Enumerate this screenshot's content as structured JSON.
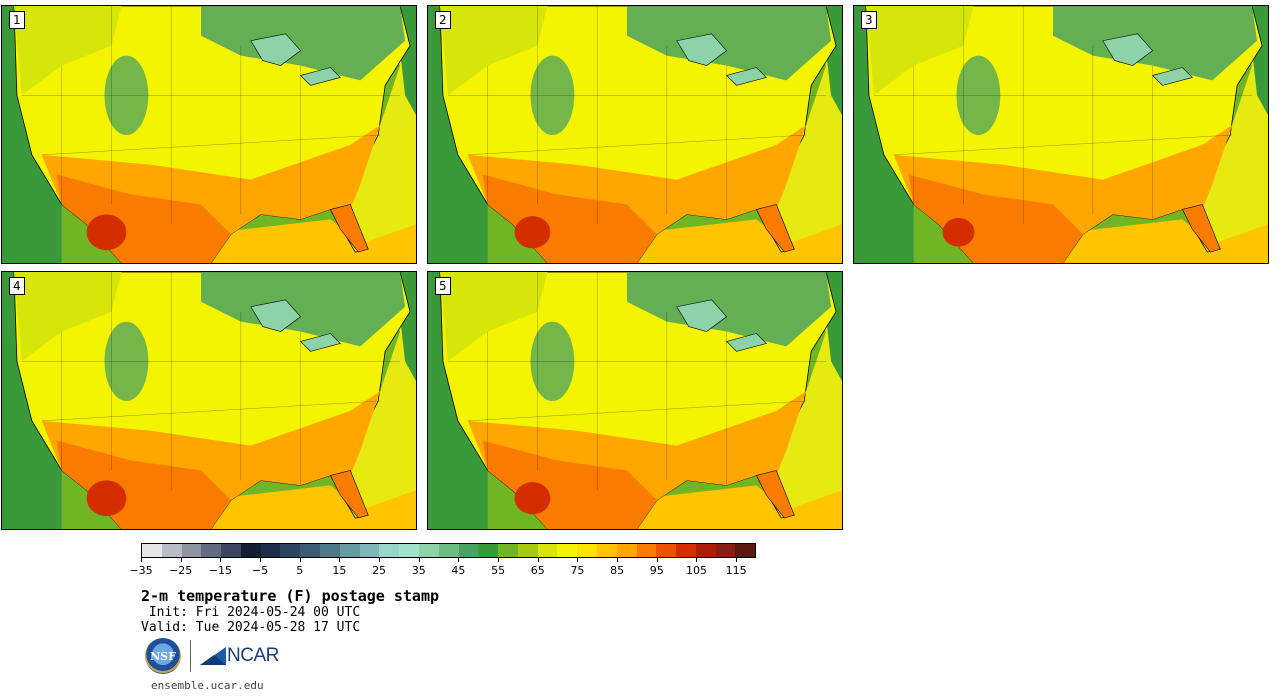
{
  "stamps": [
    {
      "label": "1"
    },
    {
      "label": "2"
    },
    {
      "label": "3"
    },
    {
      "label": "4"
    },
    {
      "label": "5"
    }
  ],
  "colorbar": {
    "colors": [
      "#e6e6e6",
      "#b8bcc4",
      "#8c93a1",
      "#626c80",
      "#3c4660",
      "#141e32",
      "#1e2d4a",
      "#2c4562",
      "#3c5c74",
      "#4f7889",
      "#6799a3",
      "#7fb7b9",
      "#9ad5cc",
      "#a5e2cd",
      "#8dd2a8",
      "#6cbc83",
      "#4aa161",
      "#3a9a3a",
      "#6fb524",
      "#a6cc12",
      "#d7e60a",
      "#f4f400",
      "#ffe400",
      "#ffc600",
      "#ffa600",
      "#f97b00",
      "#ec5200",
      "#d42e00",
      "#ac1e06",
      "#842010",
      "#5c1a0f"
    ],
    "tick_labels": [
      "−35",
      "−25",
      "−15",
      "−5",
      "5",
      "15",
      "25",
      "35",
      "45",
      "55",
      "65",
      "75",
      "85",
      "95",
      "105",
      "115"
    ]
  },
  "title": "2-m temperature (F) postage stamp",
  "init": " Init: Fri 2024-05-24 00 UTC",
  "valid": "Valid: Tue 2024-05-28 17 UTC",
  "logos": {
    "nsf": "NSF",
    "ncar": "NCAR"
  },
  "url": "ensemble.ucar.edu",
  "palette": {
    "ocean_cool": "#3a9a3a",
    "ocean_mid": "#6fb524",
    "gulf": "#ffc600",
    "land_cool": "#4aa161",
    "land_mild": "#d7e60a",
    "land_warm": "#f4f400",
    "land_hot": "#ffa600",
    "land_hotter": "#f97b00",
    "land_hottest": "#d42e00",
    "lakes": "#8dd2a8"
  }
}
